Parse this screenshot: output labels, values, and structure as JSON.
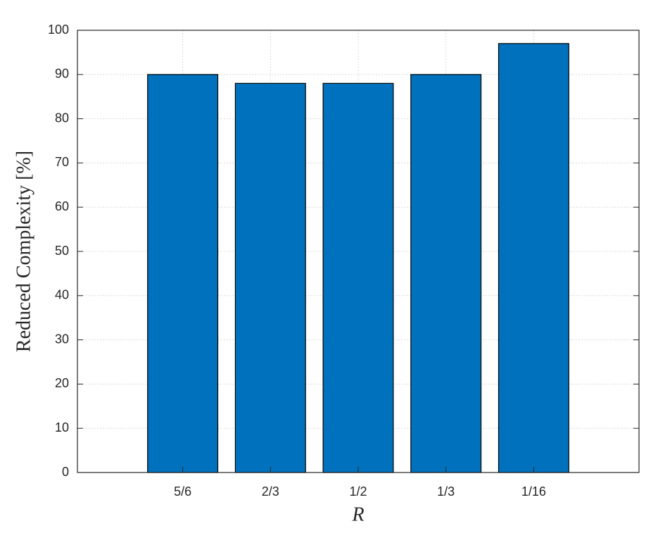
{
  "chart_data": {
    "type": "bar",
    "x_label": "R",
    "y_label": "Reduced Complexity [%]",
    "categories": [
      "5/6",
      "2/3",
      "1/2",
      "1/3",
      "1/16"
    ],
    "values": [
      90,
      88,
      88,
      90,
      97
    ],
    "color": "#0072bd",
    "ylim": [
      0,
      100
    ],
    "yticks": [
      0,
      10,
      20,
      30,
      40,
      50,
      60,
      70,
      80,
      90,
      100
    ],
    "grid": true
  }
}
